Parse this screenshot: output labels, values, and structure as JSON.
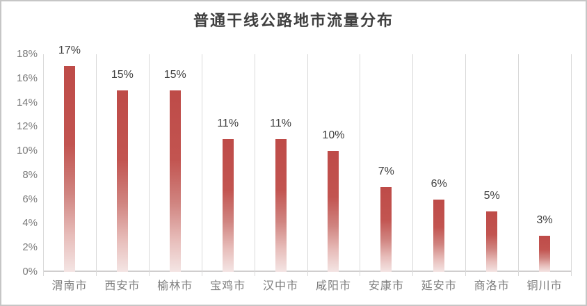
{
  "chart_data": {
    "type": "bar",
    "title": "普通干线公路地市流量分布",
    "categories": [
      "渭南市",
      "西安市",
      "榆林市",
      "宝鸡市",
      "汉中市",
      "咸阳市",
      "安康市",
      "延安市",
      "商洛市",
      "铜川市"
    ],
    "values": [
      17,
      15,
      15,
      11,
      11,
      10,
      7,
      6,
      5,
      3
    ],
    "data_labels": [
      "17%",
      "15%",
      "15%",
      "11%",
      "11%",
      "10%",
      "7%",
      "6%",
      "5%",
      "3%"
    ],
    "xlabel": "",
    "ylabel": "",
    "ylim": [
      0,
      18
    ],
    "ytick_step": 2,
    "yticks": [
      "0%",
      "2%",
      "4%",
      "6%",
      "8%",
      "10%",
      "12%",
      "14%",
      "16%",
      "18%"
    ],
    "grid": "vertical-only",
    "legend": "none",
    "colors": {
      "bar_top": "#be4b48",
      "bar_mid1": "#c25450",
      "bar_mid2": "#d08480",
      "bar_mid3": "#e7bcb9",
      "bar_bottom": "#f4e5e4",
      "gridline": "#d9d9d9",
      "axis_line": "#d0cece",
      "title_text": "#3f3f3f",
      "data_label_text": "#3f3f3f",
      "tick_label_text": "#7c7c7c",
      "chart_border": "#c6c6c6",
      "background": "#ffffff"
    }
  }
}
